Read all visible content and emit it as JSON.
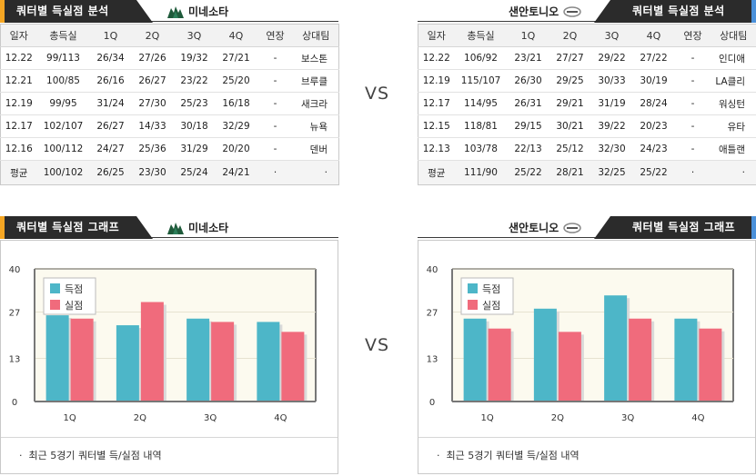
{
  "colors": {
    "scored": "#4db6c8",
    "allowed": "#f06b7c",
    "accent_left": "#f5a623",
    "accent_right": "#4a90d9"
  },
  "left": {
    "header": {
      "title": "쿼터별 득실점 분석",
      "team": "미네소타"
    },
    "table": {
      "columns": [
        "일자",
        "총득실",
        "1Q",
        "2Q",
        "3Q",
        "4Q",
        "연장",
        "상대팀"
      ],
      "rows": [
        [
          "12.22",
          "99/113",
          "26/34",
          "27/26",
          "19/32",
          "27/21",
          "-",
          "보스톤"
        ],
        [
          "12.21",
          "100/85",
          "26/16",
          "26/27",
          "23/22",
          "25/20",
          "-",
          "브루클"
        ],
        [
          "12.19",
          "99/95",
          "31/24",
          "27/30",
          "25/23",
          "16/18",
          "-",
          "새크라"
        ],
        [
          "12.17",
          "102/107",
          "26/27",
          "14/33",
          "30/18",
          "32/29",
          "-",
          "뉴욕"
        ],
        [
          "12.16",
          "100/112",
          "24/27",
          "25/36",
          "31/29",
          "20/20",
          "-",
          "덴버"
        ]
      ],
      "average": [
        "평균",
        "100/102",
        "26/25",
        "23/30",
        "25/24",
        "24/21",
        "·",
        "·"
      ]
    },
    "graph_header": {
      "title": "쿼터별 득실점 그래프",
      "team": "미네소타"
    },
    "chart_data": {
      "type": "bar",
      "categories": [
        "1Q",
        "2Q",
        "3Q",
        "4Q"
      ],
      "series": [
        {
          "name": "득점",
          "values": [
            26,
            23,
            25,
            24
          ]
        },
        {
          "name": "실점",
          "values": [
            25,
            30,
            24,
            21
          ]
        }
      ],
      "ylim": [
        0,
        40
      ],
      "yticks": [
        "0",
        "13",
        "27",
        "40"
      ],
      "legend": "top-left"
    },
    "footnote": "최근 5경기 쿼터별 득/실점 내역"
  },
  "right": {
    "header": {
      "title": "쿼터별 득실점 분석",
      "team": "샌안토니오"
    },
    "table": {
      "columns": [
        "일자",
        "총득실",
        "1Q",
        "2Q",
        "3Q",
        "4Q",
        "연장",
        "상대팀"
      ],
      "rows": [
        [
          "12.22",
          "106/92",
          "23/21",
          "27/27",
          "29/22",
          "27/22",
          "-",
          "인디애"
        ],
        [
          "12.19",
          "115/107",
          "26/30",
          "29/25",
          "30/33",
          "30/19",
          "-",
          "LA클리"
        ],
        [
          "12.17",
          "114/95",
          "26/31",
          "29/21",
          "31/19",
          "28/24",
          "-",
          "워싱턴"
        ],
        [
          "12.15",
          "118/81",
          "29/15",
          "30/21",
          "39/22",
          "20/23",
          "-",
          "유타"
        ],
        [
          "12.13",
          "103/78",
          "22/13",
          "25/12",
          "32/30",
          "24/23",
          "-",
          "애틀랜"
        ]
      ],
      "average": [
        "평균",
        "111/90",
        "25/22",
        "28/21",
        "32/25",
        "25/22",
        "·",
        "·"
      ]
    },
    "graph_header": {
      "title": "쿼터별 득실점 그래프",
      "team": "샌안토니오"
    },
    "chart_data": {
      "type": "bar",
      "categories": [
        "1Q",
        "2Q",
        "3Q",
        "4Q"
      ],
      "series": [
        {
          "name": "득점",
          "values": [
            25,
            28,
            32,
            25
          ]
        },
        {
          "name": "실점",
          "values": [
            22,
            21,
            25,
            22
          ]
        }
      ],
      "ylim": [
        0,
        40
      ],
      "yticks": [
        "0",
        "13",
        "27",
        "40"
      ],
      "legend": "top-left"
    },
    "footnote": "최근 5경기 쿼터별 득/실점 내역"
  },
  "vs_label": "VS"
}
